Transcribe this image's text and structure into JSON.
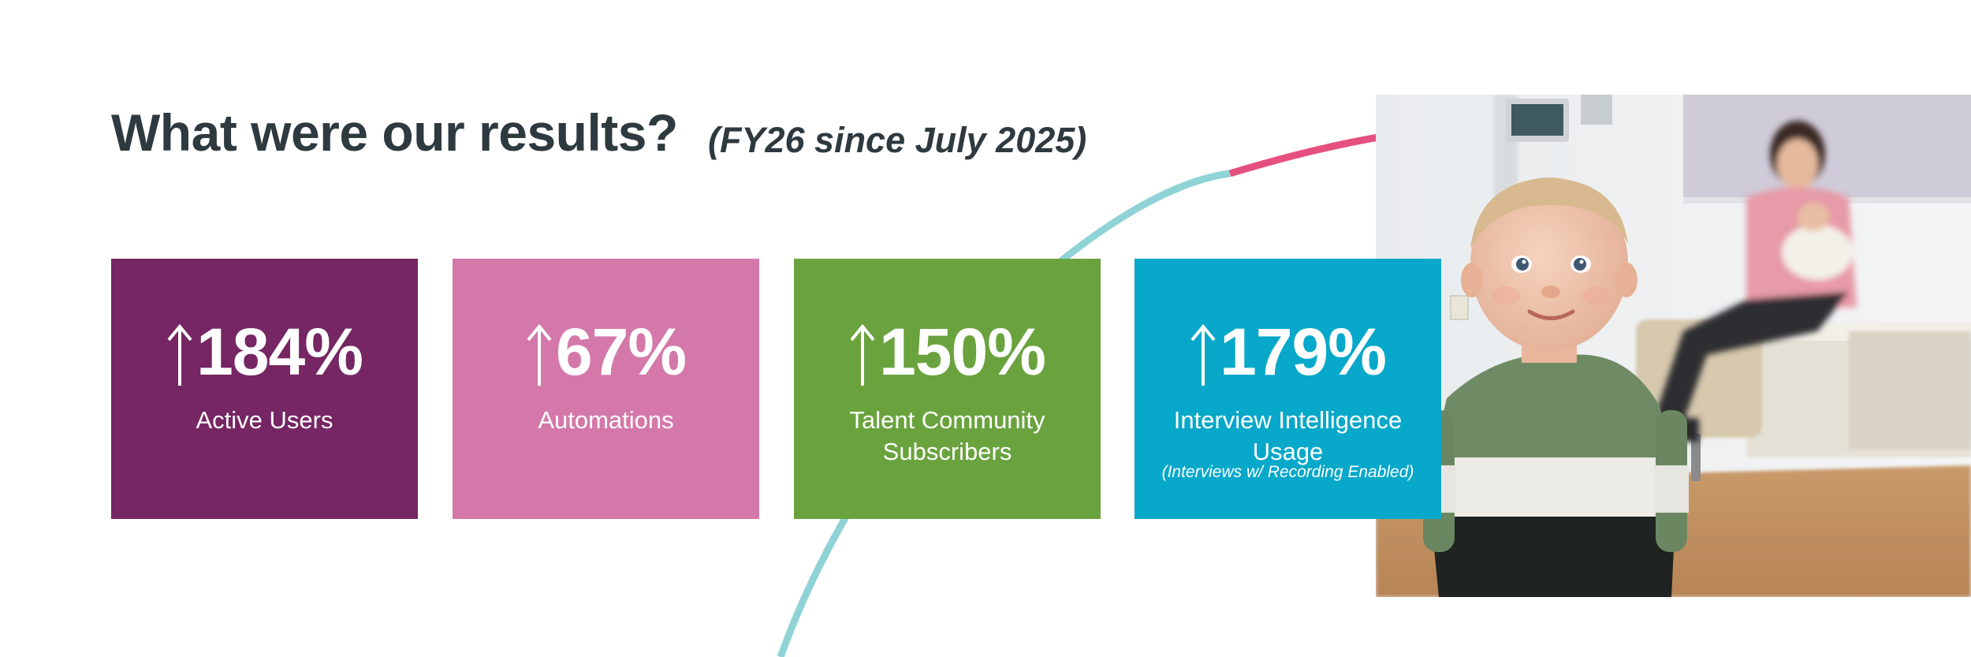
{
  "header": {
    "title": "What were our results?",
    "subtitle": "(FY26 since July 2025)"
  },
  "cards": [
    {
      "value": "184%",
      "label": "Active Users",
      "color": "#752663"
    },
    {
      "value": "67%",
      "label": "Automations",
      "color": "#d478aa"
    },
    {
      "value": "150%",
      "label": "Talent Community Subscribers",
      "color": "#6aa33e"
    },
    {
      "value": "179%",
      "label": "Interview Intelligence Usage",
      "note": "(Interviews w/ Recording Enabled)",
      "color": "#07a8c9"
    }
  ],
  "icons": {
    "metric": "arrow-up-icon"
  },
  "colors": {
    "arc_teal": "#8fd3d6",
    "arc_pink": "#e5507f",
    "title_text": "#2e3a3f"
  },
  "photo": {
    "content": "toddler in green-white-black sweater smiling in a clinic room, woman holding an infant seated in the background"
  }
}
